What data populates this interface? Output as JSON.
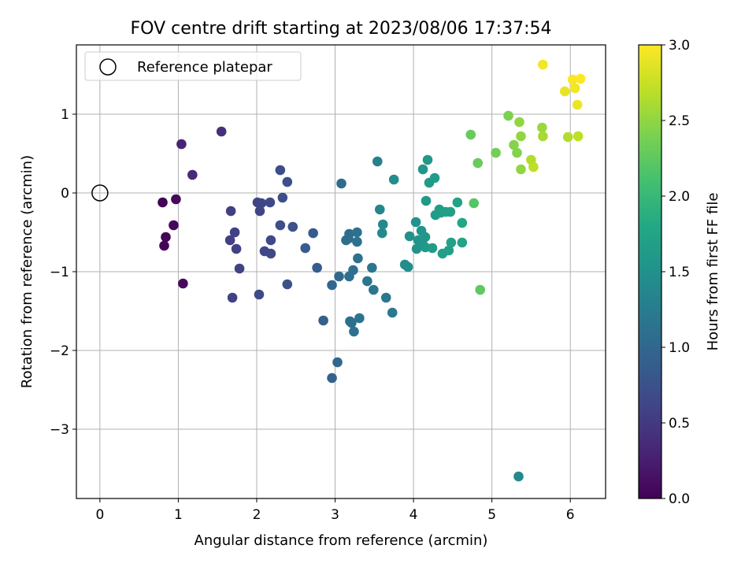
{
  "chart_data": {
    "type": "scatter",
    "title": "FOV centre drift starting at 2023/08/06 17:37:54",
    "xlabel": "Angular distance from reference (arcmin)",
    "ylabel": "Rotation from reference (arcmin)",
    "xlim": [
      -0.3,
      6.45
    ],
    "ylim": [
      -3.88,
      1.88
    ],
    "x_ticks": [
      0,
      1,
      2,
      3,
      4,
      5,
      6
    ],
    "y_ticks": [
      -3,
      -2,
      -1,
      0,
      1
    ],
    "grid": true,
    "legend": {
      "placement": "top-left",
      "entries": [
        "Reference platepar"
      ]
    },
    "reference_point": {
      "x": 0,
      "y": 0,
      "marker": "open-circle"
    },
    "colorbar": {
      "label": "Hours from first FF file",
      "range": [
        0,
        3
      ],
      "ticks": [
        0.0,
        0.5,
        1.0,
        1.5,
        2.0,
        2.5,
        3.0
      ],
      "tick_labels": [
        "0.0",
        "0.5",
        "1.0",
        "1.5",
        "2.0",
        "2.5",
        "3.0"
      ],
      "colormap": [
        "#440154",
        "#482475",
        "#414487",
        "#355f8d",
        "#2a788e",
        "#21918c",
        "#22a884",
        "#44bf70",
        "#7ad151",
        "#bddf26",
        "#fde725"
      ]
    },
    "series": [
      {
        "points": [
          {
            "x": 0.8,
            "y": -0.12,
            "c": 0.02
          },
          {
            "x": 0.82,
            "y": -0.67,
            "c": 0.03
          },
          {
            "x": 0.84,
            "y": -0.56,
            "c": 0.04
          },
          {
            "x": 0.94,
            "y": -0.41,
            "c": 0.05
          },
          {
            "x": 0.97,
            "y": -0.08,
            "c": 0.07
          },
          {
            "x": 1.06,
            "y": -1.15,
            "c": 0.08
          },
          {
            "x": 1.04,
            "y": 0.62,
            "c": 0.3
          },
          {
            "x": 1.18,
            "y": 0.23,
            "c": 0.35
          },
          {
            "x": 1.55,
            "y": 0.78,
            "c": 0.4
          },
          {
            "x": 1.67,
            "y": -0.23,
            "c": 0.55
          },
          {
            "x": 1.66,
            "y": -0.6,
            "c": 0.55
          },
          {
            "x": 1.72,
            "y": -0.5,
            "c": 0.56
          },
          {
            "x": 1.74,
            "y": -0.71,
            "c": 0.57
          },
          {
            "x": 1.69,
            "y": -1.33,
            "c": 0.57
          },
          {
            "x": 1.78,
            "y": -0.96,
            "c": 0.58
          },
          {
            "x": 2.01,
            "y": -0.12,
            "c": 0.6
          },
          {
            "x": 2.04,
            "y": -0.23,
            "c": 0.61
          },
          {
            "x": 2.06,
            "y": -0.13,
            "c": 0.62
          },
          {
            "x": 2.1,
            "y": -0.74,
            "c": 0.63
          },
          {
            "x": 2.17,
            "y": -0.12,
            "c": 0.64
          },
          {
            "x": 2.18,
            "y": -0.6,
            "c": 0.65
          },
          {
            "x": 2.18,
            "y": -0.77,
            "c": 0.66
          },
          {
            "x": 2.03,
            "y": -1.29,
            "c": 0.67
          },
          {
            "x": 2.3,
            "y": 0.29,
            "c": 0.7
          },
          {
            "x": 2.3,
            "y": -0.41,
            "c": 0.71
          },
          {
            "x": 2.33,
            "y": -0.06,
            "c": 0.72
          },
          {
            "x": 2.39,
            "y": 0.14,
            "c": 0.73
          },
          {
            "x": 2.39,
            "y": -1.16,
            "c": 0.74
          },
          {
            "x": 2.46,
            "y": -0.43,
            "c": 0.75
          },
          {
            "x": 2.62,
            "y": -0.7,
            "c": 0.85
          },
          {
            "x": 2.72,
            "y": -0.51,
            "c": 0.86
          },
          {
            "x": 2.77,
            "y": -0.95,
            "c": 0.87
          },
          {
            "x": 2.85,
            "y": -1.62,
            "c": 0.9
          },
          {
            "x": 2.96,
            "y": -2.35,
            "c": 0.95
          },
          {
            "x": 2.96,
            "y": -1.17,
            "c": 1.0
          },
          {
            "x": 3.03,
            "y": -2.15,
            "c": 1.0
          },
          {
            "x": 3.05,
            "y": -1.06,
            "c": 1.02
          },
          {
            "x": 3.08,
            "y": 0.12,
            "c": 1.05
          },
          {
            "x": 3.14,
            "y": -0.6,
            "c": 1.05
          },
          {
            "x": 3.17,
            "y": -0.58,
            "c": 1.06
          },
          {
            "x": 3.18,
            "y": -0.52,
            "c": 1.07
          },
          {
            "x": 3.18,
            "y": -1.06,
            "c": 1.08
          },
          {
            "x": 3.19,
            "y": -1.63,
            "c": 1.08
          },
          {
            "x": 3.21,
            "y": -1.65,
            "c": 1.09
          },
          {
            "x": 3.23,
            "y": -0.98,
            "c": 1.1
          },
          {
            "x": 3.24,
            "y": -1.76,
            "c": 1.1
          },
          {
            "x": 3.28,
            "y": -0.5,
            "c": 1.11
          },
          {
            "x": 3.28,
            "y": -0.62,
            "c": 1.12
          },
          {
            "x": 3.29,
            "y": -0.83,
            "c": 1.13
          },
          {
            "x": 3.31,
            "y": -1.59,
            "c": 1.14
          },
          {
            "x": 3.41,
            "y": -1.12,
            "c": 1.16
          },
          {
            "x": 3.47,
            "y": -0.95,
            "c": 1.17
          },
          {
            "x": 3.49,
            "y": -1.23,
            "c": 1.18
          },
          {
            "x": 3.65,
            "y": -1.33,
            "c": 1.2
          },
          {
            "x": 3.73,
            "y": -1.52,
            "c": 1.22
          },
          {
            "x": 3.54,
            "y": 0.4,
            "c": 1.3
          },
          {
            "x": 3.57,
            "y": -0.21,
            "c": 1.35
          },
          {
            "x": 3.6,
            "y": -0.51,
            "c": 1.4
          },
          {
            "x": 3.61,
            "y": -0.4,
            "c": 1.4
          },
          {
            "x": 3.75,
            "y": 0.17,
            "c": 1.45
          },
          {
            "x": 3.89,
            "y": -0.91,
            "c": 1.45
          },
          {
            "x": 3.93,
            "y": -0.94,
            "c": 1.46
          },
          {
            "x": 3.95,
            "y": -0.55,
            "c": 1.5
          },
          {
            "x": 4.03,
            "y": -0.37,
            "c": 1.52
          },
          {
            "x": 4.04,
            "y": -0.71,
            "c": 1.52
          },
          {
            "x": 4.06,
            "y": -0.6,
            "c": 1.53
          },
          {
            "x": 4.1,
            "y": -0.48,
            "c": 1.55
          },
          {
            "x": 4.12,
            "y": -0.66,
            "c": 1.56
          },
          {
            "x": 4.12,
            "y": 0.3,
            "c": 1.57
          },
          {
            "x": 4.15,
            "y": -0.56,
            "c": 1.58
          },
          {
            "x": 4.15,
            "y": -0.69,
            "c": 1.59
          },
          {
            "x": 4.16,
            "y": -0.1,
            "c": 1.6
          },
          {
            "x": 4.18,
            "y": 0.42,
            "c": 1.61
          },
          {
            "x": 4.2,
            "y": 0.13,
            "c": 1.62
          },
          {
            "x": 4.24,
            "y": -0.7,
            "c": 1.63
          },
          {
            "x": 4.27,
            "y": 0.19,
            "c": 1.64
          },
          {
            "x": 4.28,
            "y": -0.28,
            "c": 1.65
          },
          {
            "x": 4.33,
            "y": -0.21,
            "c": 1.66
          },
          {
            "x": 4.35,
            "y": -0.25,
            "c": 1.67
          },
          {
            "x": 4.37,
            "y": -0.77,
            "c": 1.68
          },
          {
            "x": 4.41,
            "y": -0.24,
            "c": 1.69
          },
          {
            "x": 4.45,
            "y": -0.73,
            "c": 1.7
          },
          {
            "x": 4.47,
            "y": -0.24,
            "c": 1.7
          },
          {
            "x": 4.48,
            "y": -0.63,
            "c": 1.71
          },
          {
            "x": 4.56,
            "y": -0.12,
            "c": 1.72
          },
          {
            "x": 4.62,
            "y": -0.63,
            "c": 1.75
          },
          {
            "x": 4.62,
            "y": -0.38,
            "c": 1.78
          },
          {
            "x": 4.73,
            "y": 0.74,
            "c": 2.3
          },
          {
            "x": 4.77,
            "y": -0.13,
            "c": 2.2
          },
          {
            "x": 4.82,
            "y": 0.38,
            "c": 2.3
          },
          {
            "x": 4.85,
            "y": -1.23,
            "c": 2.25
          },
          {
            "x": 5.05,
            "y": 0.51,
            "c": 2.35
          },
          {
            "x": 5.21,
            "y": 0.98,
            "c": 2.4
          },
          {
            "x": 5.28,
            "y": 0.61,
            "c": 2.45
          },
          {
            "x": 5.32,
            "y": 0.51,
            "c": 2.45
          },
          {
            "x": 5.34,
            "y": -3.6,
            "c": 1.4
          },
          {
            "x": 5.35,
            "y": 0.9,
            "c": 2.5
          },
          {
            "x": 5.37,
            "y": 0.72,
            "c": 2.5
          },
          {
            "x": 5.37,
            "y": 0.3,
            "c": 2.5
          },
          {
            "x": 5.5,
            "y": 0.42,
            "c": 2.65
          },
          {
            "x": 5.53,
            "y": 0.33,
            "c": 2.7
          },
          {
            "x": 5.64,
            "y": 0.83,
            "c": 2.55
          },
          {
            "x": 5.65,
            "y": 0.72,
            "c": 2.6
          },
          {
            "x": 5.65,
            "y": 1.63,
            "c": 2.95
          },
          {
            "x": 5.93,
            "y": 1.29,
            "c": 2.9
          },
          {
            "x": 5.97,
            "y": 0.71,
            "c": 2.65
          },
          {
            "x": 6.03,
            "y": 1.44,
            "c": 2.98
          },
          {
            "x": 6.06,
            "y": 1.33,
            "c": 2.95
          },
          {
            "x": 6.09,
            "y": 1.12,
            "c": 2.92
          },
          {
            "x": 6.1,
            "y": 0.72,
            "c": 2.7
          },
          {
            "x": 6.13,
            "y": 1.45,
            "c": 3.0
          }
        ]
      }
    ]
  }
}
